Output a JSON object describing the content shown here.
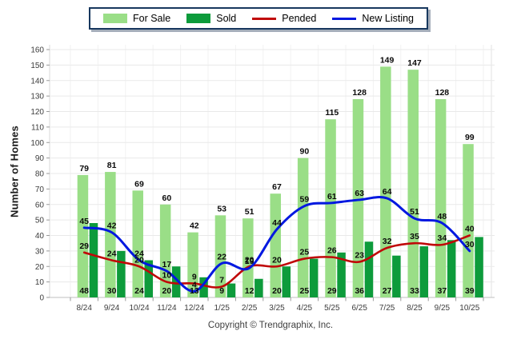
{
  "footer": {
    "copyright": "Copyright © Trendgraphix, Inc."
  },
  "chart_data": {
    "type": "combo-bar-line",
    "title": "",
    "xlabel": "",
    "ylabel": "Number of Homes",
    "ylim": [
      0,
      160
    ],
    "ytick_step": 10,
    "grid": true,
    "legend_position": "top-center",
    "categories": [
      "8/24",
      "9/24",
      "10/24",
      "11/24",
      "12/24",
      "1/25",
      "2/25",
      "3/25",
      "4/25",
      "5/25",
      "6/25",
      "7/25",
      "8/25",
      "9/25",
      "10/25"
    ],
    "series": [
      {
        "name": "For Sale",
        "type": "bar",
        "color": "#9ADE87",
        "values": [
          79,
          81,
          69,
          60,
          42,
          53,
          51,
          67,
          90,
          115,
          128,
          149,
          147,
          128,
          99
        ],
        "label_position": "above-bar"
      },
      {
        "name": "Sold",
        "type": "bar",
        "color": "#0D9B3B",
        "values": [
          48,
          30,
          24,
          20,
          13,
          9,
          12,
          20,
          25,
          29,
          36,
          27,
          33,
          37,
          39
        ],
        "label_position": "bottom-inside"
      },
      {
        "name": "Pended",
        "type": "line",
        "color": "#C00808",
        "values": [
          29,
          24,
          20,
          10,
          9,
          7,
          20,
          20,
          25,
          26,
          23,
          32,
          35,
          34,
          40
        ],
        "label_position": "above-point"
      },
      {
        "name": "New Listing",
        "type": "line",
        "color": "#0018E0",
        "values": [
          45,
          42,
          24,
          17,
          4,
          22,
          19,
          44,
          59,
          61,
          63,
          64,
          51,
          48,
          30
        ],
        "label_position": "above-point"
      }
    ]
  }
}
